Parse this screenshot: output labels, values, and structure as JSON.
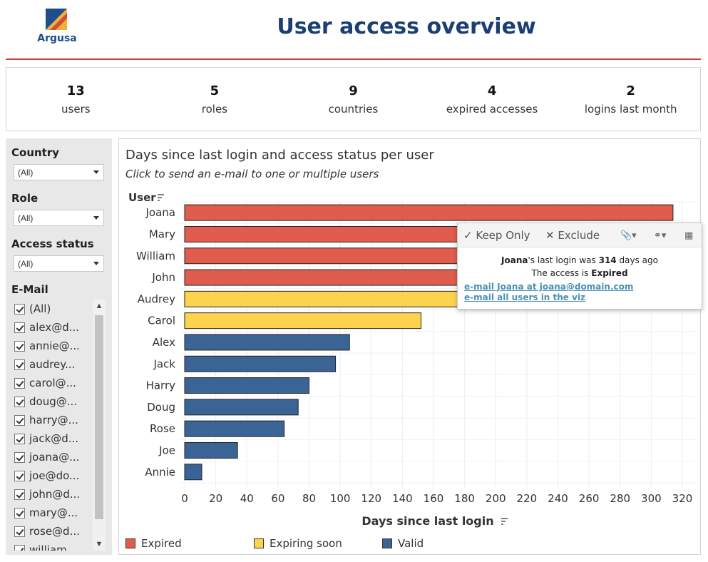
{
  "header": {
    "brand": "Argusa",
    "title": "User access overview",
    "rule_color": "#c8413a"
  },
  "kpis": [
    {
      "value": "13",
      "label": "users"
    },
    {
      "value": "5",
      "label": "roles"
    },
    {
      "value": "9",
      "label": "countries"
    },
    {
      "value": "4",
      "label": "expired accesses"
    },
    {
      "value": "2",
      "label": "logins last month"
    }
  ],
  "filters": {
    "country": {
      "title": "Country",
      "value": "(All)"
    },
    "role": {
      "title": "Role",
      "value": "(All)"
    },
    "access_status": {
      "title": "Access status",
      "value": "(All)"
    },
    "email": {
      "title": "E-Mail",
      "items": [
        "(All)",
        "alex@d...",
        "annie@...",
        "audrey...",
        "carol@...",
        "doug@...",
        "harry@...",
        "jack@d...",
        "joana@...",
        "joe@do...",
        "john@d...",
        "mary@...",
        "rose@d...",
        "william..."
      ]
    }
  },
  "chart": {
    "title": "Days since last login and access status per user",
    "subtitle": "Click to send an e-mail to one or multiple users",
    "y_header": "User"
  },
  "chart_data": {
    "type": "bar",
    "orientation": "horizontal",
    "categories": [
      "Joana",
      "Mary",
      "William",
      "John",
      "Audrey",
      "Carol",
      "Alex",
      "Jack",
      "Harry",
      "Doug",
      "Rose",
      "Joe",
      "Annie"
    ],
    "values": [
      314,
      245,
      240,
      230,
      176,
      152,
      106,
      97,
      80,
      73,
      64,
      34,
      11
    ],
    "status": [
      "Expired",
      "Expired",
      "Expired",
      "Expired",
      "Expiring soon",
      "Expiring soon",
      "Valid",
      "Valid",
      "Valid",
      "Valid",
      "Valid",
      "Valid",
      "Valid"
    ],
    "xlabel": "Days since last login",
    "xlim": [
      0,
      320
    ],
    "xticks": [
      0,
      20,
      40,
      60,
      80,
      100,
      120,
      140,
      160,
      180,
      200,
      220,
      240,
      260,
      280,
      300,
      320
    ],
    "grid": true,
    "legend": [
      {
        "name": "Expired",
        "color": "#e05c4d"
      },
      {
        "name": "Expiring soon",
        "color": "#fdd34e"
      },
      {
        "name": "Valid",
        "color": "#3a6496"
      }
    ],
    "legend_position": "bottom"
  },
  "tooltip": {
    "keep_only": "Keep Only",
    "exclude": "Exclude",
    "line1_name": "Joana",
    "line1_text_a": "'s last login was ",
    "line1_days": "314",
    "line1_text_b": " days ago",
    "line2_text": "The access is ",
    "line2_status": "Expired",
    "link1": "e-mail Joana at joana@domain.com",
    "link2": "e-mail all users in the viz"
  }
}
